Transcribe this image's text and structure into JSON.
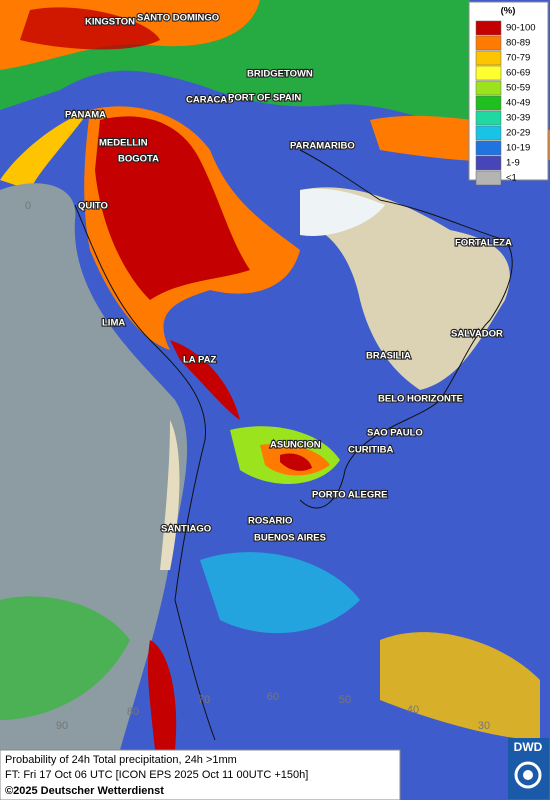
{
  "legend": {
    "title": "(%)",
    "items": [
      {
        "label": "90-100",
        "color": "#c40000"
      },
      {
        "label": "80-89",
        "color": "#ff7a00"
      },
      {
        "label": "70-79",
        "color": "#ffc400"
      },
      {
        "label": "60-69",
        "color": "#ffff30"
      },
      {
        "label": "50-59",
        "color": "#9be31c"
      },
      {
        "label": "40-49",
        "color": "#1fbf1f"
      },
      {
        "label": "30-39",
        "color": "#1fd9a0"
      },
      {
        "label": "20-29",
        "color": "#19c3e6"
      },
      {
        "label": "10-19",
        "color": "#1f74e0"
      },
      {
        "label": "1-9",
        "color": "#4646b8"
      },
      {
        "label": "<1",
        "color": "#b4b4b4"
      }
    ]
  },
  "cities": [
    "KINGSTON",
    "SANTO DOMINGO",
    "BRIDGETOWN",
    "PANAMA",
    "CARACAS",
    "PORT OF SPAIN",
    "MEDELLIN",
    "BOGOTA",
    "PARAMARIBO",
    "QUITO",
    "FORTALEZA",
    "LIMA",
    "SALVADOR",
    "LA PAZ",
    "BRASILIA",
    "BELO HORIZONTE",
    "SAO PAULO",
    "ASUNCION",
    "CURITIBA",
    "PORTO ALEGRE",
    "ROSARIO",
    "SANTIAGO",
    "BUENOS AIRES"
  ],
  "grid_labels": [
    "0",
    "90",
    "80",
    "70",
    "60",
    "50",
    "40",
    "30"
  ],
  "footer": {
    "line1": "Probability of 24h Total precipitation, 24h >1mm",
    "line2": "FT: Fri 17 Oct 06 UTC [ICON EPS 2025 Oct 11 00UTC +150h]",
    "line3": "©2025 Deutscher Wetterdienst"
  },
  "logo": "DWD"
}
